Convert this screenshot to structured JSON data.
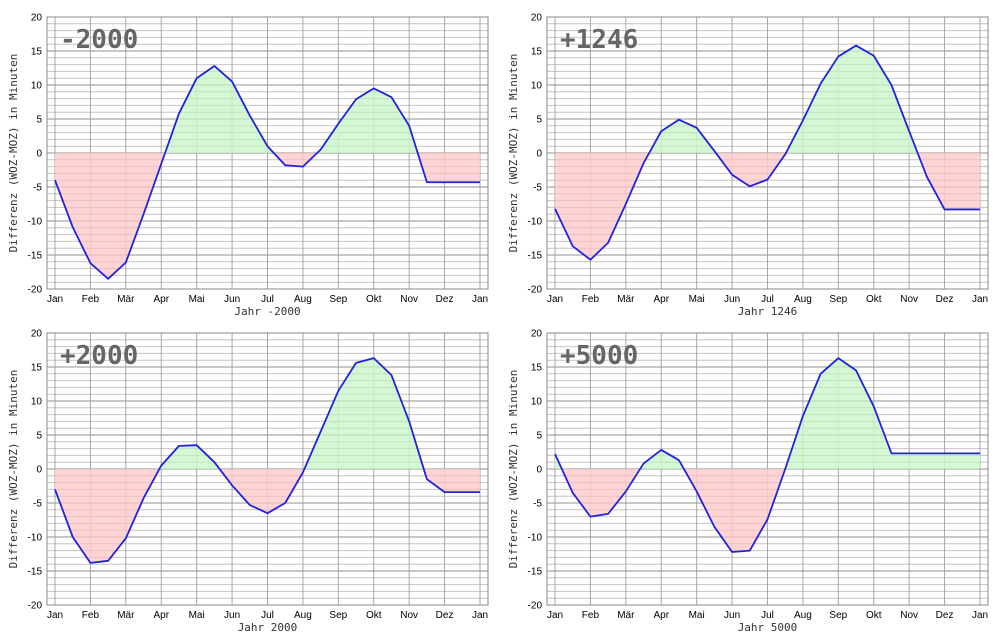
{
  "chart_data": [
    {
      "type": "area",
      "title": "-2000",
      "xlabel": "Jahr -2000",
      "ylabel": "Differenz (WOZ-MOZ) in Minuten",
      "ylim": [
        -20,
        20
      ],
      "yticks": [
        20,
        15,
        10,
        5,
        0,
        -5,
        -10,
        -15,
        -20
      ],
      "month_ticks": [
        "Jan",
        "Feb",
        "Mär",
        "Apr",
        "Mai",
        "Jun",
        "Jul",
        "Aug",
        "Sep",
        "Okt",
        "Nov",
        "Dez",
        "Jan"
      ],
      "grid": true,
      "colors": {
        "line": "#2222dd",
        "positive_fill": "#ccf7cc",
        "negative_fill": "#ffcccc"
      },
      "series": [
        {
          "x": [
            0,
            0.5,
            1.0,
            1.5,
            2.0,
            2.5,
            3.0,
            3.5,
            4.0,
            4.5,
            5.0,
            5.5,
            6.0,
            6.5,
            7.0,
            7.5,
            8.0,
            8.5,
            9.0,
            9.5,
            10.0,
            10.5,
            11.0,
            11.5,
            12.0
          ],
          "y": [
            -4.0,
            -10.9,
            -16.2,
            -18.5,
            -16.1,
            -9.0,
            -1.6,
            5.8,
            11.0,
            12.8,
            10.5,
            5.5,
            1.0,
            -1.8,
            -2.0,
            0.5,
            4.3,
            7.9,
            9.5,
            8.2,
            4.0,
            -4.3,
            -4.3,
            -4.3,
            -4.3
          ]
        }
      ]
    },
    {
      "type": "area",
      "title": "+1246",
      "xlabel": "Jahr 1246",
      "ylabel": "Differenz (WOZ-MOZ) in Minuten",
      "ylim": [
        -20,
        20
      ],
      "yticks": [
        20,
        15,
        10,
        5,
        0,
        -5,
        -10,
        -15,
        -20
      ],
      "month_ticks": [
        "Jan",
        "Feb",
        "Mär",
        "Apr",
        "Mai",
        "Jun",
        "Jul",
        "Aug",
        "Sep",
        "Okt",
        "Nov",
        "Dez",
        "Jan"
      ],
      "grid": true,
      "colors": {
        "line": "#2222dd",
        "positive_fill": "#ccf7cc",
        "negative_fill": "#ffcccc"
      },
      "series": [
        {
          "x": [
            0,
            0.5,
            1.0,
            1.5,
            2.0,
            2.5,
            3.0,
            3.5,
            4.0,
            4.5,
            5.0,
            5.5,
            6.0,
            6.5,
            7.0,
            7.5,
            8.0,
            8.5,
            9.0,
            9.5,
            10.0,
            10.5,
            11.0,
            11.5,
            12.0
          ],
          "y": [
            -8.2,
            -13.7,
            -15.7,
            -13.2,
            -7.5,
            -1.5,
            3.2,
            4.9,
            3.7,
            0.3,
            -3.2,
            -4.9,
            -3.9,
            -0.2,
            4.8,
            10.2,
            14.2,
            15.8,
            14.3,
            10.0,
            3.2,
            -3.5,
            -8.3,
            -8.3,
            -8.3
          ]
        }
      ]
    },
    {
      "type": "area",
      "title": "+2000",
      "xlabel": "Jahr 2000",
      "ylabel": "Differenz (WOZ-MOZ) in Minuten",
      "ylim": [
        -20,
        20
      ],
      "yticks": [
        20,
        15,
        10,
        5,
        0,
        -5,
        -10,
        -15,
        -20
      ],
      "month_ticks": [
        "Jan",
        "Feb",
        "Mär",
        "Apr",
        "Mai",
        "Jun",
        "Jul",
        "Aug",
        "Sep",
        "Okt",
        "Nov",
        "Dez",
        "Jan"
      ],
      "grid": true,
      "colors": {
        "line": "#2222dd",
        "positive_fill": "#ccf7cc",
        "negative_fill": "#ffcccc"
      },
      "series": [
        {
          "x": [
            0,
            0.5,
            1.0,
            1.5,
            2.0,
            2.5,
            3.0,
            3.5,
            4.0,
            4.5,
            5.0,
            5.5,
            6.0,
            6.5,
            7.0,
            7.5,
            8.0,
            8.5,
            9.0,
            9.5,
            10.0,
            10.5,
            11.0,
            11.5,
            12.0
          ],
          "y": [
            -3.0,
            -10.0,
            -13.8,
            -13.5,
            -10.2,
            -4.3,
            0.5,
            3.4,
            3.5,
            1.0,
            -2.4,
            -5.3,
            -6.5,
            -5.0,
            -0.5,
            5.5,
            11.5,
            15.6,
            16.3,
            13.8,
            7.0,
            -1.5,
            -3.4,
            -3.4,
            -3.4
          ]
        }
      ]
    },
    {
      "type": "area",
      "title": "+5000",
      "xlabel": "Jahr 5000",
      "ylabel": "Differenz (WOZ-MOZ) in Minuten",
      "ylim": [
        -20,
        20
      ],
      "yticks": [
        20,
        15,
        10,
        5,
        0,
        -5,
        -10,
        -15,
        -20
      ],
      "month_ticks": [
        "Jan",
        "Feb",
        "Mär",
        "Apr",
        "Mai",
        "Jun",
        "Jul",
        "Aug",
        "Sep",
        "Okt",
        "Nov",
        "Dez",
        "Jan"
      ],
      "grid": true,
      "colors": {
        "line": "#2222dd",
        "positive_fill": "#ccf7cc",
        "negative_fill": "#ffcccc"
      },
      "series": [
        {
          "x": [
            0,
            0.5,
            1.0,
            1.5,
            2.0,
            2.5,
            3.0,
            3.5,
            4.0,
            4.5,
            5.0,
            5.5,
            6.0,
            6.5,
            7.0,
            7.5,
            8.0,
            8.5,
            9.0,
            9.5,
            10.0,
            10.5,
            11.0,
            11.5,
            12.0
          ],
          "y": [
            2.2,
            -3.5,
            -7.0,
            -6.6,
            -3.3,
            0.8,
            2.8,
            1.3,
            -3.3,
            -8.5,
            -12.2,
            -12.0,
            -7.4,
            0.0,
            7.8,
            14.0,
            16.3,
            14.5,
            9.2,
            2.3,
            2.3,
            2.3,
            2.3,
            2.3,
            2.3
          ]
        }
      ]
    }
  ]
}
